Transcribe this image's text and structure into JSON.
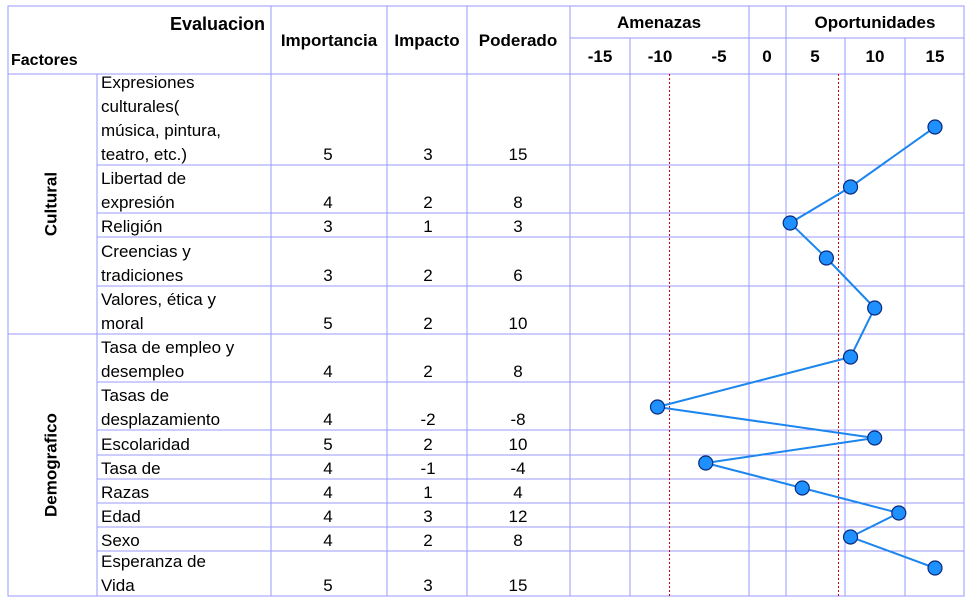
{
  "header": {
    "evaluacion": "Evaluacion",
    "factores": "Factores",
    "importancia": "Importancia",
    "impacto": "Impacto",
    "poderado": "Poderado",
    "amenazas": "Amenazas",
    "oportunidades": "Oportunidades"
  },
  "ticks": [
    "-15",
    "-10",
    "-5",
    "0",
    "5",
    "10",
    "15"
  ],
  "groups": [
    {
      "name": "Cultural",
      "rows": [
        {
          "lines": [
            "Expresiones",
            "culturales(",
            "música, pintura,",
            "teatro, etc.)"
          ],
          "importancia": "5",
          "impacto": "3",
          "poderado": "15"
        },
        {
          "lines": [
            "Libertad de",
            "expresión"
          ],
          "importancia": "4",
          "impacto": "2",
          "poderado": "8"
        },
        {
          "lines": [
            "Religión"
          ],
          "importancia": "3",
          "impacto": "1",
          "poderado": "3"
        },
        {
          "lines": [
            "Creencias y",
            "tradiciones"
          ],
          "importancia": "3",
          "impacto": "2",
          "poderado": "6"
        },
        {
          "lines": [
            "Valores, ética y",
            "moral"
          ],
          "importancia": "5",
          "impacto": "2",
          "poderado": "10"
        }
      ]
    },
    {
      "name": "Demografico",
      "rows": [
        {
          "lines": [
            "Tasa de empleo y",
            "desempleo"
          ],
          "importancia": "4",
          "impacto": "2",
          "poderado": "8"
        },
        {
          "lines": [
            "Tasas de",
            "desplazamiento"
          ],
          "importancia": "4",
          "impacto": "-2",
          "poderado": "-8"
        },
        {
          "lines": [
            "Escolaridad"
          ],
          "importancia": "5",
          "impacto": "2",
          "poderado": "10"
        },
        {
          "lines": [
            "Tasa de"
          ],
          "importancia": "4",
          "impacto": "-1",
          "poderado": "-4"
        },
        {
          "lines": [
            "Razas"
          ],
          "importancia": "4",
          "impacto": "1",
          "poderado": "4"
        },
        {
          "lines": [
            "Edad"
          ],
          "importancia": "4",
          "impacto": "3",
          "poderado": "12"
        },
        {
          "lines": [
            "Sexo"
          ],
          "importancia": "4",
          "impacto": "2",
          "poderado": "8"
        },
        {
          "lines": [
            "Esperanza de",
            "Vida"
          ],
          "importancia": "5",
          "impacto": "3",
          "poderado": "15"
        }
      ]
    }
  ],
  "chart_data": {
    "type": "line",
    "x_range": [
      -15,
      15
    ],
    "x_ticks": [
      -15,
      -10,
      -5,
      0,
      5,
      10,
      15
    ],
    "values": [
      15,
      8,
      3,
      6,
      10,
      8,
      -8,
      10,
      -4,
      4,
      12,
      8,
      15
    ],
    "reference_lines": [
      -7,
      7
    ],
    "colors": {
      "line": "#1c86ee",
      "marker": "#1e90ff",
      "marker_stroke": "#0a2a7a",
      "grid": "#9999ff",
      "reference": "#cc0000"
    }
  }
}
